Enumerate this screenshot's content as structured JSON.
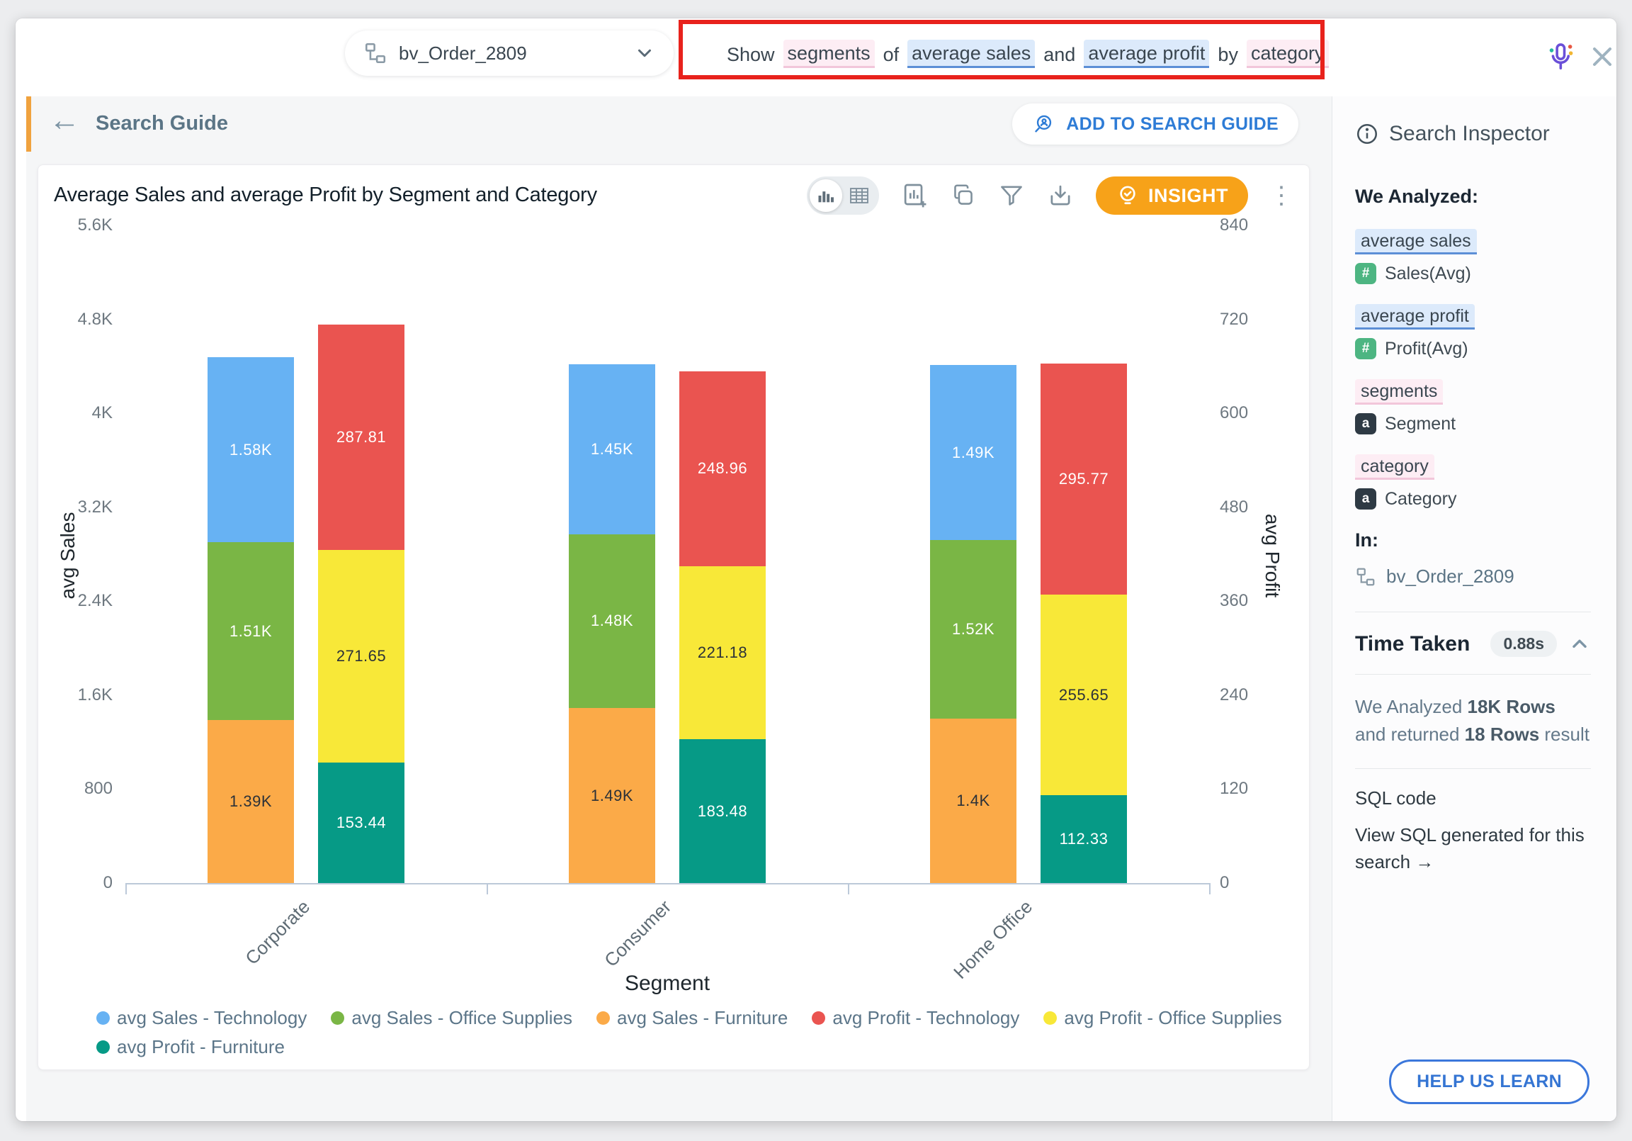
{
  "header": {
    "datasource_name": "bv_Order_2809",
    "search_tokens": [
      {
        "text": "Show",
        "type": "plain"
      },
      {
        "text": "segments",
        "type": "attribute"
      },
      {
        "text": "of",
        "type": "plain"
      },
      {
        "text": "average sales",
        "type": "measure"
      },
      {
        "text": "and",
        "type": "plain"
      },
      {
        "text": "average profit",
        "type": "measure"
      },
      {
        "text": "by",
        "type": "plain"
      },
      {
        "text": "category",
        "type": "attribute"
      }
    ]
  },
  "subheader": {
    "back_label": "Search Guide",
    "add_button": "ADD TO SEARCH GUIDE"
  },
  "chart_card": {
    "title": "Average Sales and average Profit by Segment and Category",
    "insight_button": "INSIGHT"
  },
  "chart_data": {
    "type": "bar",
    "stacked": true,
    "dual_axis": true,
    "grid": false,
    "legend_position": "bottom",
    "categories": [
      "Corporate",
      "Consumer",
      "Home Office"
    ],
    "xlabel": "Segment",
    "left_axis": {
      "label": "avg Sales",
      "max": 5600,
      "ticks_top_to_bottom": [
        "5.6K",
        "4.8K",
        "4K",
        "3.2K",
        "2.4K",
        "1.6K",
        "800",
        "0"
      ]
    },
    "right_axis": {
      "label": "avg Profit",
      "max": 840,
      "ticks_top_to_bottom": [
        "840",
        "720",
        "600",
        "480",
        "360",
        "240",
        "120",
        "0"
      ]
    },
    "series": [
      {
        "name": "avg Sales - Technology",
        "axis": "left",
        "color": "#67b2f3",
        "label_color": "#ffffff",
        "values": [
          1580,
          1450,
          1490
        ],
        "labels": [
          "1.58K",
          "1.45K",
          "1.49K"
        ]
      },
      {
        "name": "avg Sales - Office Supplies",
        "axis": "left",
        "color": "#7ab645",
        "label_color": "#ffffff",
        "values": [
          1510,
          1480,
          1520
        ],
        "labels": [
          "1.51K",
          "1.48K",
          "1.52K"
        ]
      },
      {
        "name": "avg Sales - Furniture",
        "axis": "left",
        "color": "#fbaa48",
        "label_color": "#2b3138",
        "values": [
          1390,
          1490,
          1400
        ],
        "labels": [
          "1.39K",
          "1.49K",
          "1.4K"
        ]
      },
      {
        "name": "avg Profit - Technology",
        "axis": "right",
        "color": "#ea5450",
        "label_color": "#ffffff",
        "values": [
          287.81,
          248.96,
          295.77
        ],
        "labels": [
          "287.81",
          "248.96",
          "295.77"
        ]
      },
      {
        "name": "avg Profit - Office Supplies",
        "axis": "right",
        "color": "#f8e838",
        "label_color": "#2b3138",
        "values": [
          271.65,
          221.18,
          255.65
        ],
        "labels": [
          "271.65",
          "221.18",
          "255.65"
        ]
      },
      {
        "name": "avg Profit - Furniture",
        "axis": "right",
        "color": "#069a86",
        "label_color": "#ffffff",
        "values": [
          153.44,
          183.48,
          112.33
        ],
        "labels": [
          "153.44",
          "183.48",
          "112.33"
        ]
      }
    ],
    "sales_stack_bottom_to_top": [
      "avg Sales - Furniture",
      "avg Sales - Office Supplies",
      "avg Sales - Technology"
    ],
    "profit_stack_bottom_to_top": [
      "avg Profit - Furniture",
      "avg Profit - Office Supplies",
      "avg Profit - Technology"
    ]
  },
  "inspector": {
    "title": "Search Inspector",
    "we_analyzed": "We Analyzed:",
    "tokens": [
      {
        "phrase": "average sales",
        "type": "measure",
        "badge": "#",
        "field": "Sales(Avg)"
      },
      {
        "phrase": "average profit",
        "type": "measure",
        "badge": "#",
        "field": "Profit(Avg)"
      },
      {
        "phrase": "segments",
        "type": "attribute",
        "badge": "a",
        "field": "Segment"
      },
      {
        "phrase": "category",
        "type": "attribute",
        "badge": "a",
        "field": "Category"
      }
    ],
    "in_label": "In:",
    "in_source": "bv_Order_2809",
    "time_taken_label": "Time Taken",
    "time_taken_value": "0.88s",
    "rows_line1_prefix": "We Analyzed ",
    "rows_line1_bold": "18K Rows",
    "rows_line2_prefix": "and returned ",
    "rows_line2_bold": "18 Rows",
    "rows_line2_suffix": " result",
    "sql_label": "SQL code",
    "sql_link": "View SQL generated for this search",
    "help_button": "HELP US LEARN"
  },
  "icons": {
    "back_arrow": "←",
    "arrow_right": "→",
    "kebab": "⋮"
  },
  "colors": {
    "annotation_red": "#e8221c",
    "accent_orange": "#f0a23e",
    "insight_orange": "#f7a219",
    "link_blue": "#2e7cd6",
    "measure_highlight": "#dceafb",
    "attribute_highlight": "#fdedf4"
  }
}
